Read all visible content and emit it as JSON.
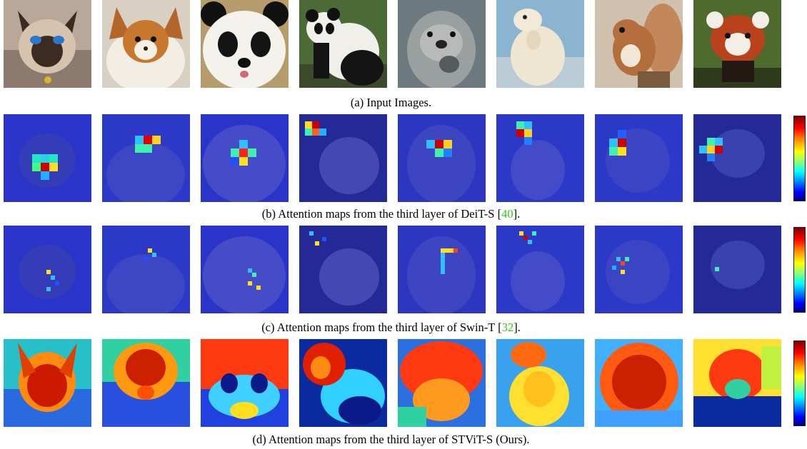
{
  "captions": {
    "a": {
      "text": "(a) Input Images."
    },
    "b": {
      "pre": "(b) Attention maps from the third layer of DeiT-S [",
      "ref": "40",
      "post": "]."
    },
    "c": {
      "pre": "(c) Attention maps from the third layer of Swin-T [",
      "ref": "32",
      "post": "]."
    },
    "d": {
      "text": "(d) Attention maps from the third layer of STViT-S (Ours)."
    }
  },
  "subjects": [
    "siamese-cat",
    "pomeranian-dog",
    "panda-face",
    "panda-full",
    "sea-otter",
    "polar-bear",
    "squirrel",
    "red-panda"
  ],
  "colors": {
    "link_green": "#2ecc10",
    "overlay_blue": "#2a34c8",
    "colorbar": [
      "#7f0000",
      "#ff0000",
      "#ff8c00",
      "#ffff00",
      "#80ff80",
      "#00ffff",
      "#0080ff",
      "#0000ff",
      "#00007f"
    ]
  }
}
